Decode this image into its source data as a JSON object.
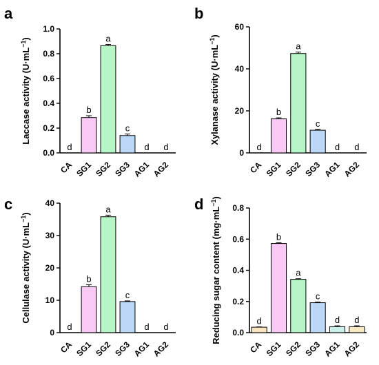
{
  "figure": {
    "palette": {
      "CA": "#fbe5bf",
      "SG1": "#f9c9f5",
      "SG2": "#b5f5c6",
      "SG3": "#bcd7f5",
      "AG1": "#c9f0ea",
      "AG2": "#f7e9c2"
    }
  },
  "chart_data": [
    {
      "panel": "a",
      "type": "bar",
      "categories": [
        "CA",
        "SG1",
        "SG2",
        "SG3",
        "AG1",
        "AG2"
      ],
      "values": [
        0,
        0.285,
        0.865,
        0.14,
        0,
        0
      ],
      "errors": [
        0,
        0.015,
        0.01,
        0.012,
        0,
        0
      ],
      "significance": [
        "d",
        "b",
        "a",
        "c",
        "d",
        "d"
      ],
      "ylabel": "Laccase  activity (U·mL",
      "ylabel_sup": "−1",
      "ylabel_close": ")",
      "ylim": [
        0,
        1.0
      ],
      "yticks": [
        0,
        0.2,
        0.4,
        0.6,
        0.8,
        1.0
      ],
      "ytick_labels": [
        "0.0",
        "0.2",
        "0.4",
        "0.6",
        "0.8",
        "1.0"
      ]
    },
    {
      "panel": "b",
      "type": "bar",
      "categories": [
        "CA",
        "SG1",
        "SG2",
        "SG3",
        "AG1",
        "AG2"
      ],
      "values": [
        0,
        16.2,
        47.3,
        10.8,
        0,
        0
      ],
      "errors": [
        0,
        0.5,
        0.7,
        0.4,
        0,
        0
      ],
      "significance": [
        "d",
        "b",
        "a",
        "c",
        "d",
        "d"
      ],
      "ylabel": "Xylanase activity (U·mL",
      "ylabel_sup": "−1",
      "ylabel_close": ")",
      "ylim": [
        0,
        60
      ],
      "yticks": [
        0,
        20,
        40,
        60
      ],
      "ytick_labels": [
        "0",
        "20",
        "40",
        "60"
      ]
    },
    {
      "panel": "c",
      "type": "bar",
      "categories": [
        "CA",
        "SG1",
        "SG2",
        "SG3",
        "AG1",
        "AG2"
      ],
      "values": [
        0,
        14.2,
        35.8,
        9.6,
        0,
        0
      ],
      "errors": [
        0,
        0.6,
        0.5,
        0.2,
        0,
        0
      ],
      "significance": [
        "d",
        "b",
        "a",
        "c",
        "d",
        "d"
      ],
      "ylabel": "Cellulase activity (U·mL",
      "ylabel_sup": "−1",
      "ylabel_close": ")",
      "ylim": [
        0,
        40
      ],
      "yticks": [
        0,
        10,
        20,
        30,
        40
      ],
      "ytick_labels": [
        "0",
        "10",
        "20",
        "30",
        "40"
      ]
    },
    {
      "panel": "d",
      "type": "bar",
      "categories": [
        "CA",
        "SG1",
        "SG2",
        "SG3",
        "AG1",
        "AG2"
      ],
      "values": [
        0.035,
        0.572,
        0.342,
        0.192,
        0.038,
        0.038
      ],
      "errors": [
        0.002,
        0.005,
        0.004,
        0.004,
        0.006,
        0.006
      ],
      "significance": [
        "d",
        "b",
        "a",
        "c",
        "d",
        "d"
      ],
      "ylabel": "Reducing sugar content (mg·mL",
      "ylabel_sup": "−1",
      "ylabel_close": ")",
      "ylim": [
        0,
        0.8
      ],
      "yticks": [
        0,
        0.2,
        0.4,
        0.6,
        0.8
      ],
      "ytick_labels": [
        "0.0",
        "0.2",
        "0.4",
        "0.6",
        "0.8"
      ]
    }
  ]
}
